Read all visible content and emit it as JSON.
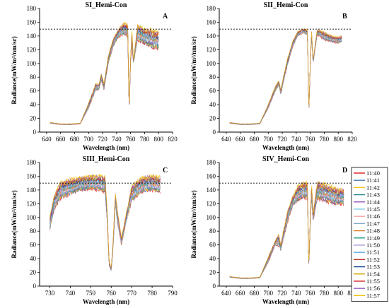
{
  "chart_data": [
    {
      "panel": "A",
      "type": "line",
      "title": "SI_Hemi-Con",
      "xlabel": "Wavelength (nm)",
      "ylabel": "Radiance(mW/m²/nm/sr)",
      "xlim": [
        630,
        820
      ],
      "ylim": [
        0,
        180
      ],
      "xticks": [
        640,
        660,
        680,
        700,
        720,
        740,
        760,
        780,
        800,
        820
      ],
      "yticks": [
        0,
        20,
        40,
        60,
        80,
        100,
        120,
        140,
        160,
        180
      ],
      "reference_line": 150,
      "x": [
        645,
        660,
        675,
        688,
        700,
        710,
        715,
        718,
        722,
        728,
        735,
        742,
        750,
        756,
        758,
        760,
        762,
        764,
        770,
        780,
        790,
        800
      ],
      "series_range": {
        "min": [
          13,
          11,
          11,
          12,
          35,
          62,
          62,
          76,
          62,
          100,
          125,
          138,
          143,
          140,
          30,
          100,
          130,
          100,
          135,
          130,
          125,
          122
        ],
        "max": [
          14,
          12,
          12,
          13,
          42,
          70,
          70,
          85,
          70,
          110,
          135,
          148,
          158,
          156,
          32,
          110,
          150,
          105,
          155,
          150,
          148,
          145
        ]
      }
    },
    {
      "panel": "B",
      "type": "line",
      "title": "SII_Hemi-Con",
      "xlabel": "Wavelength (nm)",
      "ylabel": "Radiance(mW/m²/nm/sr)",
      "xlim": [
        630,
        820
      ],
      "ylim": [
        0,
        180
      ],
      "xticks": [
        640,
        660,
        680,
        700,
        720,
        740,
        760,
        780,
        800,
        820
      ],
      "yticks": [
        0,
        20,
        40,
        60,
        80,
        100,
        120,
        140,
        160,
        180
      ],
      "reference_line": 150,
      "x": [
        645,
        660,
        675,
        688,
        700,
        710,
        715,
        718,
        722,
        728,
        735,
        742,
        750,
        756,
        758,
        760,
        762,
        764,
        770,
        780,
        790,
        800,
        805
      ],
      "series_range": {
        "min": [
          13,
          11,
          11,
          12,
          35,
          60,
          68,
          55,
          75,
          100,
          125,
          140,
          145,
          142,
          28,
          95,
          140,
          100,
          142,
          135,
          132,
          130,
          132
        ],
        "max": [
          14,
          12,
          12,
          13,
          40,
          66,
          75,
          62,
          82,
          108,
          132,
          146,
          150,
          149,
          30,
          100,
          148,
          105,
          149,
          145,
          140,
          138,
          140
        ]
      }
    },
    {
      "panel": "C",
      "type": "line",
      "title": "SIII_Hemi-Con",
      "xlabel": "Wavelength (nm)",
      "ylabel": "Radiance(mW/m²/nm/sr)",
      "xlim": [
        725,
        790
      ],
      "ylim": [
        0,
        180
      ],
      "xticks": [
        730,
        740,
        750,
        760,
        770,
        780,
        790
      ],
      "yticks": [
        0,
        20,
        40,
        60,
        80,
        100,
        120,
        140,
        160,
        180
      ],
      "reference_line": 150,
      "x": [
        730,
        732,
        735,
        740,
        745,
        750,
        755,
        757,
        758,
        759,
        760,
        761,
        762,
        763,
        765,
        767,
        770,
        775,
        780,
        784
      ],
      "series_range": {
        "min": [
          82,
          112,
          128,
          135,
          140,
          142,
          140,
          138,
          95,
          30,
          22,
          60,
          120,
          95,
          60,
          90,
          125,
          138,
          140,
          138
        ],
        "max": [
          100,
          130,
          150,
          155,
          158,
          160,
          160,
          158,
          110,
          35,
          27,
          70,
          135,
          110,
          70,
          100,
          145,
          158,
          160,
          158
        ]
      }
    },
    {
      "panel": "D",
      "type": "line",
      "title": "SIV_Hemi-Con",
      "xlabel": "Wavelength (nm)",
      "ylabel": "Radiance(mW/m²/nm/sr)",
      "xlim": [
        630,
        820
      ],
      "ylim": [
        0,
        180
      ],
      "xticks": [
        640,
        660,
        680,
        700,
        720,
        740,
        760,
        780,
        800,
        820
      ],
      "yticks": [
        0,
        20,
        40,
        60,
        80,
        100,
        120,
        140,
        160,
        180
      ],
      "reference_line": 150,
      "x": [
        645,
        660,
        675,
        688,
        700,
        710,
        715,
        718,
        722,
        728,
        735,
        742,
        750,
        756,
        758,
        760,
        762,
        764,
        770,
        780,
        790,
        800,
        808
      ],
      "series_range": {
        "min": [
          13,
          11,
          11,
          12,
          35,
          60,
          60,
          52,
          70,
          95,
          118,
          125,
          130,
          128,
          25,
          90,
          128,
          95,
          128,
          125,
          122,
          120,
          120
        ],
        "max": [
          14,
          12,
          12,
          13,
          42,
          66,
          75,
          60,
          82,
          110,
          130,
          145,
          150,
          149,
          28,
          100,
          150,
          105,
          150,
          148,
          145,
          140,
          140
        ]
      }
    }
  ],
  "legend": [
    {
      "label": "11:40",
      "color": "#e41a1c"
    },
    {
      "label": "11:41",
      "color": "#4a7fb5"
    },
    {
      "label": "11:42",
      "color": "#f5c518"
    },
    {
      "label": "11:43",
      "color": "#2e8b8b"
    },
    {
      "label": "11:44",
      "color": "#9b59b6"
    },
    {
      "label": "11:45",
      "color": "#87ceeb"
    },
    {
      "label": "11:46",
      "color": "#f4a6a6"
    },
    {
      "label": "11:47",
      "color": "#88aacc"
    },
    {
      "label": "11:48",
      "color": "#e08030"
    },
    {
      "label": "11:49",
      "color": "#2a9d8f"
    },
    {
      "label": "11:50",
      "color": "#b39ddb"
    },
    {
      "label": "11:51",
      "color": "#5dade2"
    },
    {
      "label": "11:52",
      "color": "#c0392b"
    },
    {
      "label": "11:53",
      "color": "#1f4e9a"
    },
    {
      "label": "11:54",
      "color": "#d4ac0d"
    },
    {
      "label": "11:55",
      "color": "#d62728"
    },
    {
      "label": "11:56",
      "color": "#9467bd"
    },
    {
      "label": "11:57",
      "color": "#f1c40f"
    }
  ]
}
